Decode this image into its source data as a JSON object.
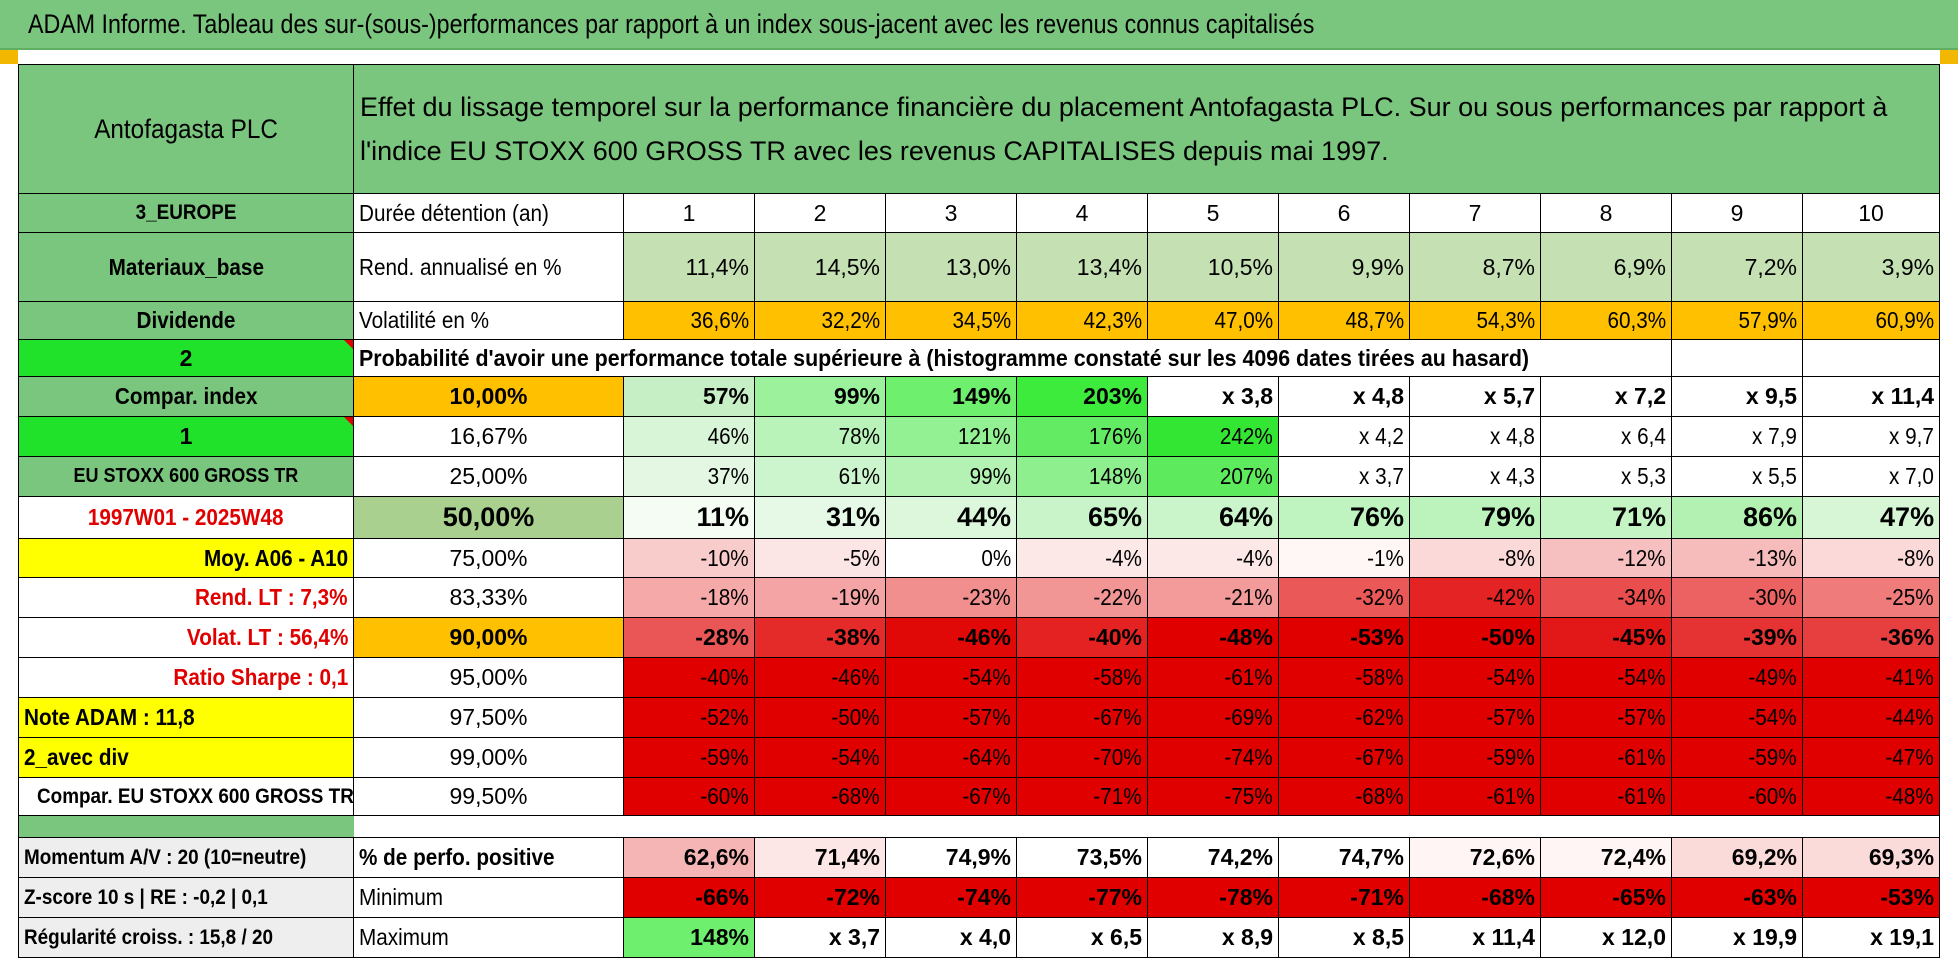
{
  "title": "ADAM Informe. Tableau des sur-(sous-)performances par rapport à un index sous-jacent avec les revenus connus capitalisés",
  "stock": "Antofagasta PLC",
  "heading": "Effet du lissage temporel sur la performance financière du placement Antofagasta PLC. Sur ou sous performances par rapport à l'indice EU STOXX 600 GROSS TR avec les revenus CAPITALISES depuis mai 1997.",
  "left_labels": {
    "region": "3_EUROPE",
    "sector": "Materiaux_base",
    "dividend": "Dividende",
    "n2": "2",
    "compar_index": "Compar. index",
    "n1": "1",
    "index_name": "EU STOXX 600 GROSS TR",
    "period": "1997W01 - 2025W48",
    "moy": "Moy. A06 - A10",
    "rend_lt": "Rend. LT :   7,3%",
    "volat_lt": "Volat. LT :   56,4%",
    "sharpe": "Ratio Sharpe :    0,1",
    "note": "Note ADAM : 11,8",
    "avec_div": "2_avec div",
    "compar_eu": "Compar. EU STOXX 600 GROSS TR",
    "momentum": "Momentum A/V : 20 (10=neutre)",
    "zscore": "Z-score 10 s | RE : -0,2 | 0,1",
    "regularite": "Régularité croiss. : 15,8 / 20"
  },
  "holding": {
    "label": "Durée détention (an)",
    "years": [
      "1",
      "2",
      "3",
      "4",
      "5",
      "6",
      "7",
      "8",
      "9",
      "10"
    ]
  },
  "rend": {
    "label": "Rend. annualisé en %",
    "values": [
      "11,4%",
      "14,5%",
      "13,0%",
      "13,4%",
      "10,5%",
      "9,9%",
      "8,7%",
      "6,9%",
      "7,2%",
      "3,9%"
    ]
  },
  "vol": {
    "label": "Volatilité en %",
    "values": [
      "36,6%",
      "32,2%",
      "34,5%",
      "42,3%",
      "47,0%",
      "48,7%",
      "54,3%",
      "60,3%",
      "57,9%",
      "60,9%"
    ]
  },
  "prob_caption": "Probabilité d'avoir une performance totale supérieure à (histogramme constaté sur les 4096 dates tirées au hasard)",
  "percentile_rows": [
    {
      "pct": "10,00%",
      "values": [
        "57%",
        "99%",
        "149%",
        "203%",
        "x 3,8",
        "x 4,8",
        "x 5,7",
        "x 7,2",
        "x 9,5",
        "x 11,4"
      ]
    },
    {
      "pct": "16,67%",
      "values": [
        "46%",
        "78%",
        "121%",
        "176%",
        "242%",
        "x 4,2",
        "x 4,8",
        "x 6,4",
        "x 7,9",
        "x 9,7"
      ]
    },
    {
      "pct": "25,00%",
      "values": [
        "37%",
        "61%",
        "99%",
        "148%",
        "207%",
        "x 3,7",
        "x 4,3",
        "x 5,3",
        "x 5,5",
        "x 7,0"
      ]
    },
    {
      "pct": "50,00%",
      "values": [
        "11%",
        "31%",
        "44%",
        "65%",
        "64%",
        "76%",
        "79%",
        "71%",
        "86%",
        "47%"
      ]
    },
    {
      "pct": "75,00%",
      "values": [
        "-10%",
        "-5%",
        "0%",
        "-4%",
        "-4%",
        "-1%",
        "-8%",
        "-12%",
        "-13%",
        "-8%"
      ]
    },
    {
      "pct": "83,33%",
      "values": [
        "-18%",
        "-19%",
        "-23%",
        "-22%",
        "-21%",
        "-32%",
        "-42%",
        "-34%",
        "-30%",
        "-25%"
      ]
    },
    {
      "pct": "90,00%",
      "values": [
        "-28%",
        "-38%",
        "-46%",
        "-40%",
        "-48%",
        "-53%",
        "-50%",
        "-45%",
        "-39%",
        "-36%"
      ]
    },
    {
      "pct": "95,00%",
      "values": [
        "-40%",
        "-46%",
        "-54%",
        "-58%",
        "-61%",
        "-58%",
        "-54%",
        "-54%",
        "-49%",
        "-41%"
      ]
    },
    {
      "pct": "97,50%",
      "values": [
        "-52%",
        "-50%",
        "-57%",
        "-67%",
        "-69%",
        "-62%",
        "-57%",
        "-57%",
        "-54%",
        "-44%"
      ]
    },
    {
      "pct": "99,00%",
      "values": [
        "-59%",
        "-54%",
        "-64%",
        "-70%",
        "-74%",
        "-67%",
        "-59%",
        "-61%",
        "-59%",
        "-47%"
      ]
    },
    {
      "pct": "99,50%",
      "values": [
        "-60%",
        "-68%",
        "-67%",
        "-71%",
        "-75%",
        "-68%",
        "-61%",
        "-61%",
        "-60%",
        "-48%"
      ]
    }
  ],
  "positive": {
    "label": "% de perfo. positive",
    "values": [
      "62,6%",
      "71,4%",
      "74,9%",
      "73,5%",
      "74,2%",
      "74,7%",
      "72,6%",
      "72,4%",
      "69,2%",
      "69,3%"
    ]
  },
  "minimum": {
    "label": "Minimum",
    "values": [
      "-66%",
      "-72%",
      "-74%",
      "-77%",
      "-78%",
      "-71%",
      "-68%",
      "-65%",
      "-63%",
      "-53%"
    ]
  },
  "maximum": {
    "label": "Maximum",
    "values": [
      "148%",
      "x 3,7",
      "x 4,0",
      "x 6,5",
      "x 8,9",
      "x 8,5",
      "x 11,4",
      "x 12,0",
      "x 19,9",
      "x 19,1"
    ]
  },
  "colors": {
    "header_green": "#7bc67e",
    "bright_green": "#21e22b",
    "yellow": "#ffff00",
    "orange": "#ffc000",
    "label_red": "#e00000"
  }
}
